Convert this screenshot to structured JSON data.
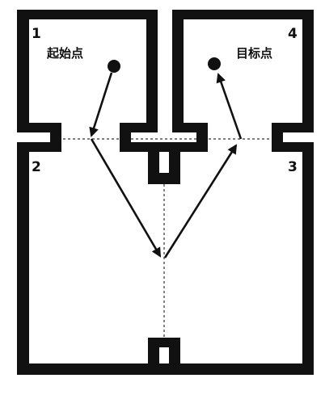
{
  "diagram": {
    "rooms": {
      "room1": {
        "number": "1",
        "label": "起始点"
      },
      "room2": {
        "number": "2"
      },
      "room3": {
        "number": "3"
      },
      "room4": {
        "number": "4",
        "label": "目标点"
      }
    },
    "colors": {
      "wall": "#111111",
      "arrow": "#111111",
      "guide": "#333333",
      "background": "#ffffff"
    },
    "markers": [
      {
        "name": "start-point",
        "shape": "filled-circle"
      },
      {
        "name": "goal-point",
        "shape": "filled-circle"
      }
    ],
    "path_order": [
      "起始点",
      "doorway-1",
      "center",
      "doorway-4",
      "目标点"
    ]
  }
}
